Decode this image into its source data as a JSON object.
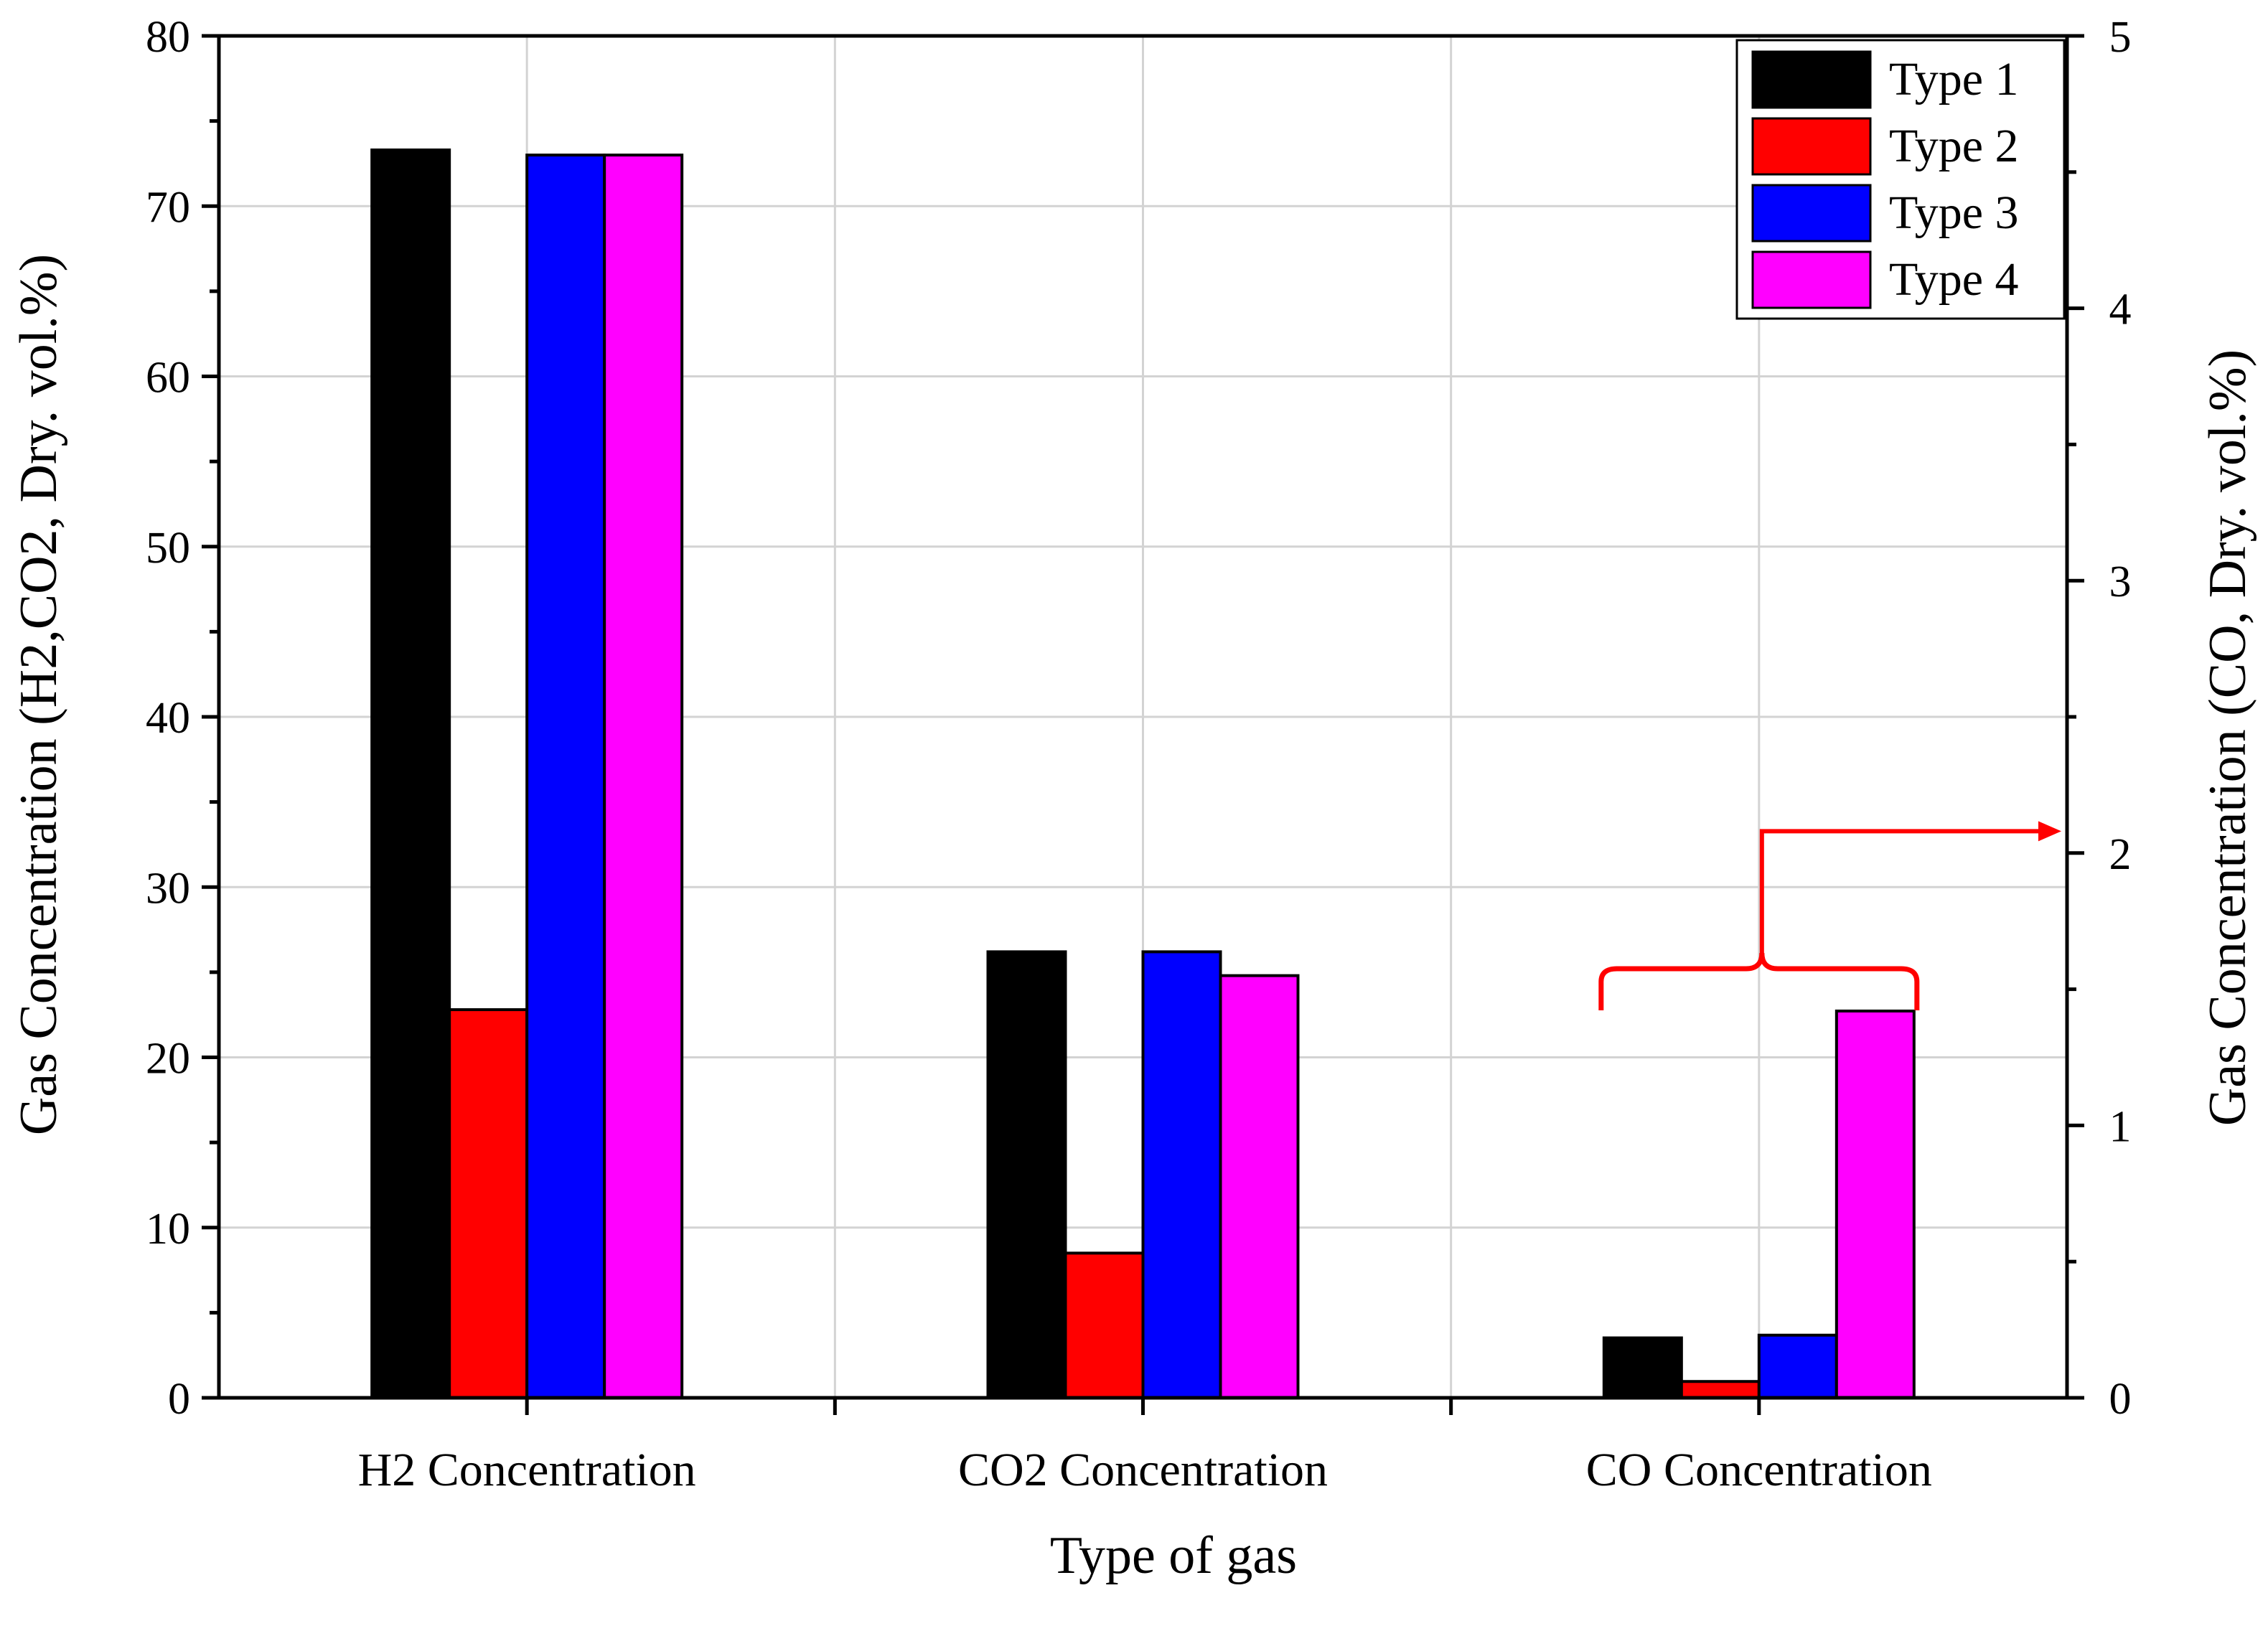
{
  "chart_data": {
    "type": "bar",
    "title": "",
    "xlabel": "Type of gas",
    "ylabel": "Gas Concentration (H2,CO2, Dry. vol.%)",
    "y2label": "Gas Concentration (CO, Dry. vol.%)",
    "ylim": [
      0,
      80
    ],
    "y2lim": [
      0,
      5
    ],
    "yticks": [
      "0",
      "10",
      "20",
      "30",
      "40",
      "50",
      "60",
      "70",
      "80"
    ],
    "y2ticks": [
      "0",
      "1",
      "2",
      "3",
      "4",
      "5"
    ],
    "grid": true,
    "categories": [
      "H2 Concentration",
      "CO2 Concentration",
      "CO Concentration"
    ],
    "category_axis": [
      "left",
      "left",
      "right"
    ],
    "series": [
      {
        "name": "Type 1",
        "color": "#000000",
        "values": [
          73.3,
          26.2,
          0.22
        ]
      },
      {
        "name": "Type 2",
        "color": "#ff0000",
        "values": [
          22.8,
          8.5,
          0.06
        ]
      },
      {
        "name": "Type 3",
        "color": "#0000ff",
        "values": [
          73.0,
          26.2,
          0.23
        ]
      },
      {
        "name": "Type 4",
        "color": "#ff00ff",
        "values": [
          73.0,
          24.8,
          1.42
        ]
      }
    ],
    "legend_position": "top-right",
    "annotation": {
      "type": "bracket-arrow",
      "color": "#ff0000",
      "from_category": "CO Concentration",
      "points_to": "right-axis"
    }
  }
}
